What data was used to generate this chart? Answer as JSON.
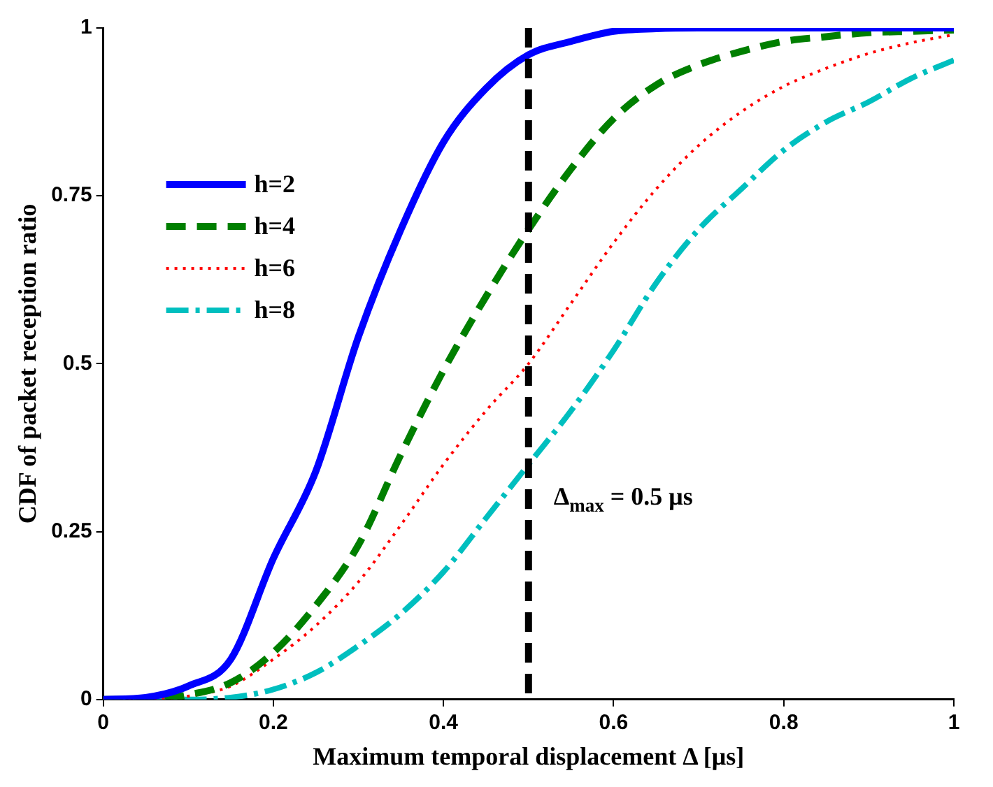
{
  "chart_data": {
    "type": "line",
    "xlabel": "Maximum temporal displacement Δ [μs]",
    "ylabel": "CDF of packet reception ratio",
    "x": [
      0,
      0.05,
      0.1,
      0.15,
      0.2,
      0.25,
      0.3,
      0.35,
      0.4,
      0.45,
      0.5,
      0.55,
      0.6,
      0.65,
      0.7,
      0.75,
      0.8,
      0.85,
      0.9,
      0.95,
      1
    ],
    "series": [
      {
        "name": "h=2",
        "color": "#0000ff",
        "line_style": "solid",
        "values": [
          0,
          0.003,
          0.02,
          0.06,
          0.21,
          0.34,
          0.54,
          0.7,
          0.83,
          0.91,
          0.96,
          0.98,
          0.995,
          0.999,
          1,
          1,
          1,
          1,
          1,
          1,
          1
        ]
      },
      {
        "name": "h=4",
        "color": "#007f00",
        "line_style": "dashed",
        "values": [
          0,
          0,
          0.007,
          0.025,
          0.07,
          0.14,
          0.23,
          0.365,
          0.49,
          0.6,
          0.7,
          0.79,
          0.865,
          0.915,
          0.945,
          0.965,
          0.98,
          0.987,
          0.993,
          0.995,
          0.997
        ]
      },
      {
        "name": "h=6",
        "color": "#ff0000",
        "line_style": "dotted",
        "values": [
          0,
          0,
          0.005,
          0.02,
          0.06,
          0.11,
          0.175,
          0.26,
          0.35,
          0.43,
          0.5,
          0.59,
          0.68,
          0.76,
          0.825,
          0.875,
          0.913,
          0.94,
          0.962,
          0.978,
          0.99
        ]
      },
      {
        "name": "h=8",
        "color": "#00bfbf",
        "line_style": "dashdot",
        "values": [
          0,
          0,
          0,
          0.003,
          0.015,
          0.04,
          0.08,
          0.128,
          0.19,
          0.27,
          0.35,
          0.43,
          0.52,
          0.62,
          0.7,
          0.76,
          0.818,
          0.86,
          0.89,
          0.925,
          0.952
        ]
      }
    ],
    "ref_lines": [
      {
        "axis": "x",
        "value": 0.5,
        "label": "Δ$_{max}$ = 0.5 μs",
        "color": "#000000",
        "line_style": "dashed"
      }
    ],
    "xlim": [
      0,
      1
    ],
    "xticks": [
      0,
      0.2,
      0.4,
      0.6,
      0.8,
      1
    ],
    "ylim": [
      0,
      1
    ],
    "yticks": [
      0,
      0.25,
      0.5,
      0.75,
      1
    ],
    "grid": false,
    "legend": "top left",
    "marker": "none"
  }
}
